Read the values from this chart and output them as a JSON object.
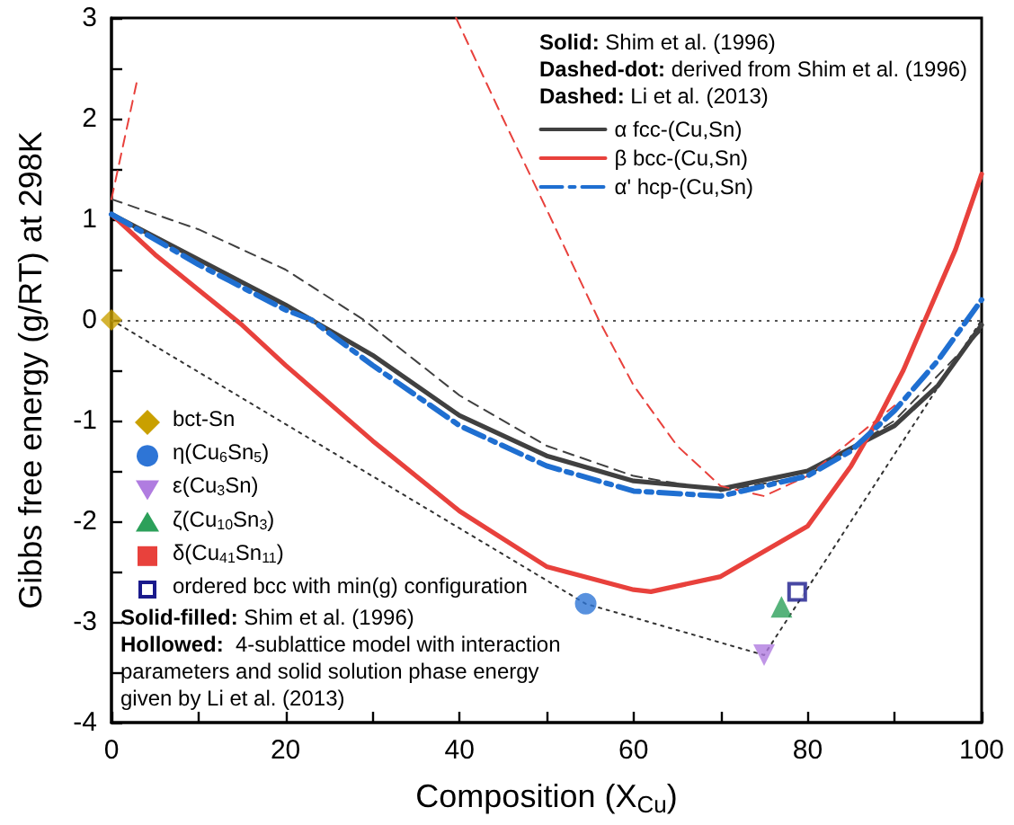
{
  "chart_data": {
    "type": "line",
    "xlabel": "Composition (X$_{Cu}$)",
    "ylabel": "Gibbs free energy (g/RT) at 298K",
    "xlim": [
      0,
      100
    ],
    "xticks": [
      0,
      20,
      40,
      60,
      80,
      100
    ],
    "ylim": [
      -4,
      3
    ],
    "yticks": [
      -4,
      -3,
      -2,
      -1,
      0,
      1,
      2,
      3
    ],
    "grid": false,
    "legend": "left",
    "ref_lines": [
      {
        "axis": "y",
        "value": 0,
        "color": "#555555",
        "line_style": "dotted"
      }
    ],
    "annotations": [
      "Solid: Shim et al. (1996)",
      "Dashed-dot: derived from Shim et al. (1996)",
      "Dashed: Li et al. (2013)",
      "Solid-filled: Shim et al. (1996)",
      "Hollowed:  4-sublattice model with interaction\nparameters and solid solution phase energy\ngiven by Li et al. (2013)"
    ],
    "series": [
      {
        "name": "α fcc-(Cu,Sn)",
        "color": "#404040",
        "line_style": "solid",
        "x": [
          0,
          10,
          20,
          30,
          40,
          50,
          60,
          70,
          80,
          90,
          95,
          100
        ],
        "values": [
          1.05,
          0.6,
          0.15,
          -0.35,
          -0.95,
          -1.35,
          -1.6,
          -1.68,
          -1.5,
          -1.05,
          -0.65,
          -0.05
        ]
      },
      {
        "type": "line",
        "color": "#404040",
        "line_style": "dashed",
        "x": [
          0,
          10,
          20,
          29,
          40,
          50,
          60,
          70,
          80,
          90,
          100
        ],
        "values": [
          1.2,
          0.9,
          0.5,
          0,
          -0.75,
          -1.25,
          -1.55,
          -1.7,
          -1.55,
          -1.0,
          -0.1
        ]
      },
      {
        "name": "β bcc-(Cu,Sn)",
        "color": "#e8413c",
        "line_style": "solid",
        "x": [
          0,
          5,
          10,
          15,
          20,
          30,
          40,
          50,
          60,
          62,
          70,
          80,
          85,
          88,
          91,
          94,
          97,
          100
        ],
        "values": [
          1.05,
          0.65,
          0.3,
          -0.05,
          -0.45,
          -1.2,
          -1.9,
          -2.45,
          -2.68,
          -2.7,
          -2.55,
          -2.05,
          -1.45,
          -1.0,
          -0.5,
          0.1,
          0.7,
          1.45
        ]
      },
      {
        "type": "line",
        "color": "#e8413c",
        "line_style": "dashed",
        "x": [
          0,
          1.5,
          3
        ],
        "values": [
          1.2,
          1.8,
          2.4
        ]
      },
      {
        "type": "line",
        "color": "#e8413c",
        "line_style": "dashed",
        "x": [
          39.6,
          45,
          50,
          56,
          60,
          65,
          70,
          75,
          80,
          85,
          90
        ],
        "values": [
          3,
          2.0,
          1.1,
          0,
          -0.65,
          -1.25,
          -1.65,
          -1.75,
          -1.55,
          -1.2,
          -0.85
        ]
      },
      {
        "name": "α' hcp-(Cu,Sn)",
        "color": "#1f6fd1",
        "line_style": "dashdot",
        "x": [
          0,
          10,
          20,
          23,
          30,
          40,
          50,
          60,
          70,
          80,
          85,
          90,
          95,
          100
        ],
        "values": [
          1.05,
          0.55,
          0.1,
          0,
          -0.45,
          -1.05,
          -1.45,
          -1.7,
          -1.75,
          -1.55,
          -1.3,
          -0.9,
          -0.4,
          0.2
        ]
      },
      {
        "type": "line",
        "color": "#333333",
        "line_style": "dotted",
        "x": [
          0,
          54.5,
          75,
          100
        ],
        "values": [
          0,
          -2.82,
          -3.33,
          0
        ]
      },
      {
        "name": "bct-Sn",
        "type": "scatter",
        "color": "#c9a000",
        "marker": "diamond",
        "x": [
          0
        ],
        "values": [
          0
        ]
      },
      {
        "name": "η(Cu$_{6}$Sn$_{5}$)",
        "type": "scatter",
        "color": "#2e75d6",
        "marker": "circle",
        "x": [
          54.5
        ],
        "values": [
          -2.82
        ]
      },
      {
        "name": "ε(Cu$_{3}$Sn)",
        "type": "scatter",
        "color": "#b07ce0",
        "marker": "triangle-down",
        "x": [
          75
        ],
        "values": [
          -3.33
        ]
      },
      {
        "name": "ζ(Cu$_{10}$Sn$_{3}$)",
        "type": "scatter",
        "color": "#2ca05a",
        "marker": "triangle",
        "x": [
          77
        ],
        "values": [
          -2.85
        ]
      },
      {
        "name": "δ(Cu$_{41}$Sn$_{11}$)",
        "type": "scatter",
        "color": "#e8413c",
        "marker": "square"
      },
      {
        "name": "ordered bcc with min(g) configuration",
        "type": "scatter",
        "color": "#1a1a8c",
        "marker": "square-open",
        "x": [
          78.8
        ],
        "values": [
          -2.7
        ]
      }
    ]
  }
}
